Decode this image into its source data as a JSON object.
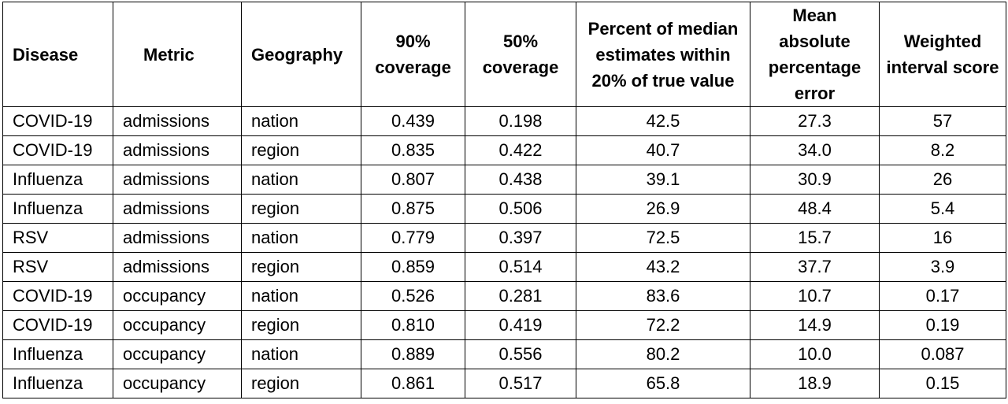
{
  "table": {
    "headers": [
      "Disease",
      "Metric",
      "Geography",
      "90% coverage",
      "50% coverage",
      "Percent of median estimates within 20% of true value",
      "Mean absolute percentage error",
      "Weighted interval score"
    ],
    "rows": [
      [
        "COVID-19",
        "admissions",
        "nation",
        "0.439",
        "0.198",
        "42.5",
        "27.3",
        "57"
      ],
      [
        "COVID-19",
        "admissions",
        "region",
        "0.835",
        "0.422",
        "40.7",
        "34.0",
        "8.2"
      ],
      [
        "Influenza",
        "admissions",
        "nation",
        "0.807",
        "0.438",
        "39.1",
        "30.9",
        "26"
      ],
      [
        "Influenza",
        "admissions",
        "region",
        "0.875",
        "0.506",
        "26.9",
        "48.4",
        "5.4"
      ],
      [
        "RSV",
        "admissions",
        "nation",
        "0.779",
        "0.397",
        "72.5",
        "15.7",
        "16"
      ],
      [
        "RSV",
        "admissions",
        "region",
        "0.859",
        "0.514",
        "43.2",
        "37.7",
        "3.9"
      ],
      [
        "COVID-19",
        "occupancy",
        "nation",
        "0.526",
        "0.281",
        "83.6",
        "10.7",
        "0.17"
      ],
      [
        "COVID-19",
        "occupancy",
        "region",
        "0.810",
        "0.419",
        "72.2",
        "14.9",
        "0.19"
      ],
      [
        "Influenza",
        "occupancy",
        "nation",
        "0.889",
        "0.556",
        "80.2",
        "10.0",
        "0.087"
      ],
      [
        "Influenza",
        "occupancy",
        "region",
        "0.861",
        "0.517",
        "65.8",
        "18.9",
        "0.15"
      ]
    ]
  }
}
